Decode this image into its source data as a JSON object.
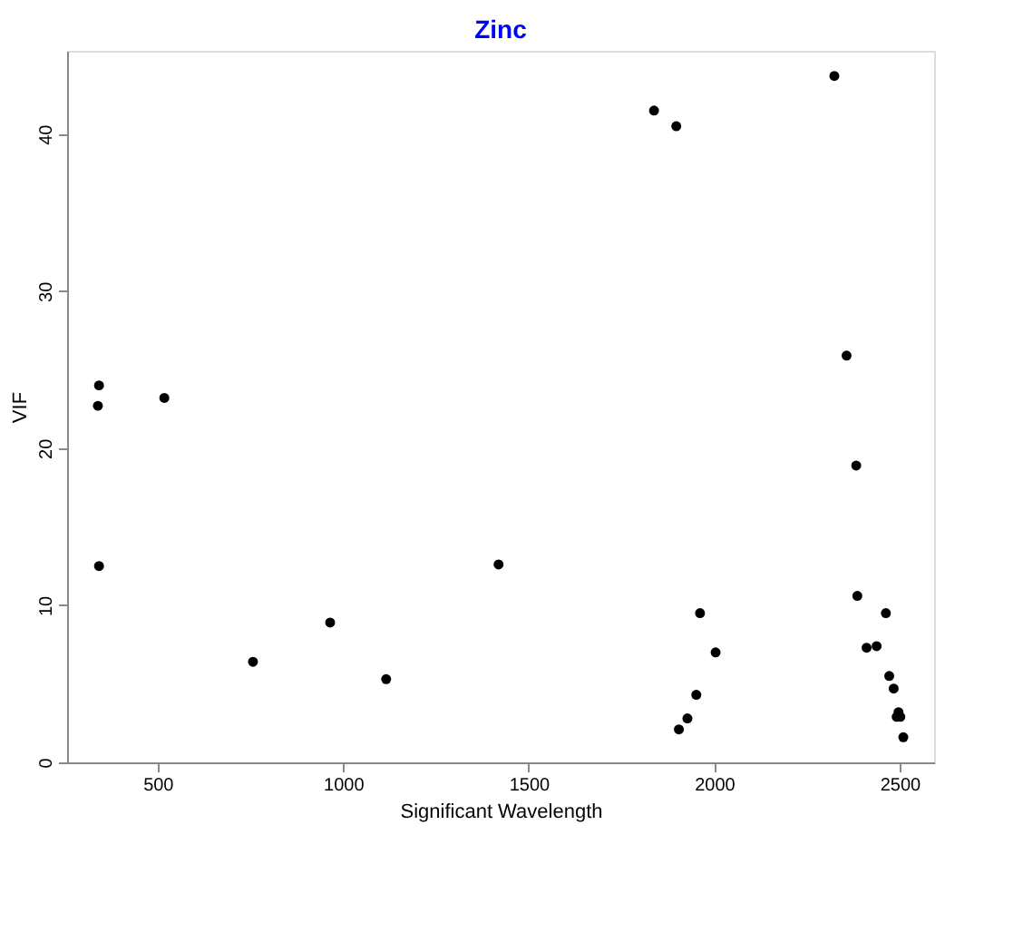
{
  "chart_data": {
    "type": "scatter",
    "title": "Zinc",
    "xlabel": "Significant Wavelength",
    "ylabel": "VIF",
    "x": [
      342,
      339,
      518,
      342,
      757,
      965,
      1116,
      1419,
      1838,
      1898,
      2324,
      2357,
      2383,
      1962,
      2004,
      1952,
      1928,
      1905,
      2386,
      2463,
      2411,
      2438,
      2472,
      2484,
      2497,
      2492,
      2502,
      2510
    ],
    "series": [
      {
        "color": "#000000",
        "values": [
          24.0,
          22.7,
          23.2,
          12.5,
          6.4,
          8.9,
          5.3,
          12.6,
          41.5,
          40.5,
          43.7,
          25.9,
          18.9,
          9.5,
          7.0,
          4.3,
          2.8,
          2.1,
          10.6,
          9.5,
          7.3,
          7.4,
          5.5,
          4.7,
          3.2,
          2.9,
          2.9,
          1.6
        ]
      }
    ],
    "xlim": [
      256,
      2593
    ],
    "ylim": [
      0,
      45.3
    ],
    "xticks": [
      500,
      1000,
      1500,
      2000,
      2500
    ],
    "yticks": [
      0,
      10,
      20,
      30,
      40
    ],
    "marker": "circle",
    "grid": false,
    "legend": false
  }
}
